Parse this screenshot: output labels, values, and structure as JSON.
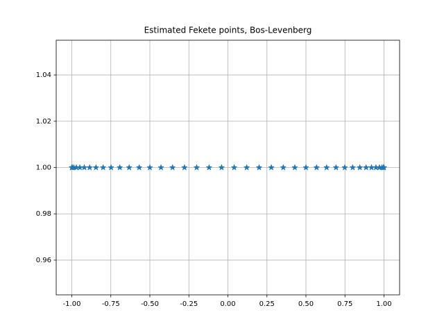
{
  "chart_data": {
    "type": "scatter",
    "title": "Estimated Fekete points, Bos-Levenberg",
    "x": [
      -1,
      -0.99676,
      -0.98705,
      -0.97094,
      -0.94854,
      -0.91998,
      -0.88546,
      -0.84519,
      -0.79944,
      -0.74851,
      -0.69272,
      -0.63244,
      -0.56806,
      -0.5,
      -0.42869,
      -0.3546,
      -0.27821,
      -0.20003,
      -0.12054,
      -0.04027,
      0.04027,
      0.12054,
      0.20003,
      0.27821,
      0.3546,
      0.42869,
      0.5,
      0.56806,
      0.63244,
      0.69272,
      0.74851,
      0.79944,
      0.84519,
      0.88546,
      0.91998,
      0.94854,
      0.97094,
      0.98705,
      0.99676,
      1
    ],
    "values": [
      1,
      1,
      1,
      1,
      1,
      1,
      1,
      1,
      1,
      1,
      1,
      1,
      1,
      1,
      1,
      1,
      1,
      1,
      1,
      1,
      1,
      1,
      1,
      1,
      1,
      1,
      1,
      1,
      1,
      1,
      1,
      1,
      1,
      1,
      1,
      1,
      1,
      1,
      1,
      1
    ],
    "color": "#1f77b4",
    "marker": "star",
    "xlim": [
      -1.1,
      1.1
    ],
    "xticks": [
      {
        "value": -1,
        "label": "-1.00"
      },
      {
        "value": -0.75,
        "label": "-0.75"
      },
      {
        "value": -0.5,
        "label": "-0.50"
      },
      {
        "value": -0.25,
        "label": "-0.25"
      },
      {
        "value": 0,
        "label": "0.00"
      },
      {
        "value": 0.25,
        "label": "0.25"
      },
      {
        "value": 0.5,
        "label": "0.50"
      },
      {
        "value": 0.75,
        "label": "0.75"
      },
      {
        "value": 1,
        "label": "1.00"
      }
    ],
    "ylim": [
      0.945,
      1.055
    ],
    "yticks": [
      0.96,
      0.98,
      {
        "value": 1,
        "label": "1.00"
      },
      1.02,
      1.04
    ],
    "grid": true
  }
}
